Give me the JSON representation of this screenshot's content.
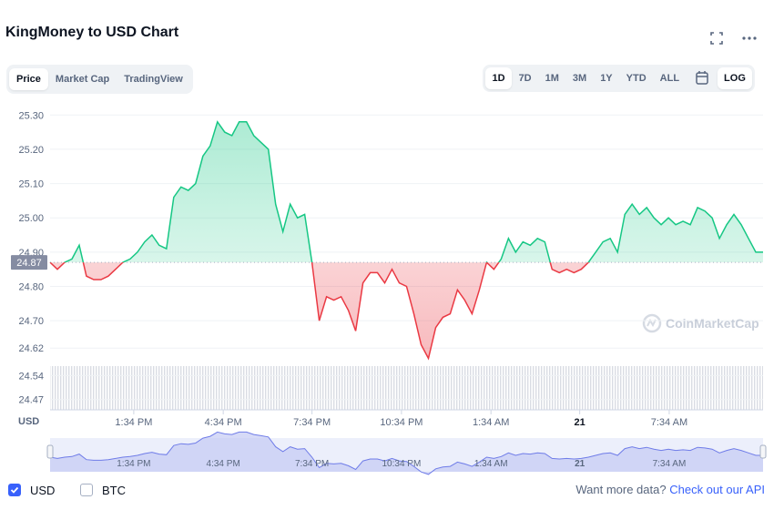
{
  "chart_data": {
    "type": "line",
    "title": "KingMoney to USD Chart",
    "tabs": [
      "Price",
      "Market Cap",
      "TradingView"
    ],
    "ranges": [
      "1D",
      "7D",
      "1M",
      "3M",
      "1Y",
      "YTD",
      "ALL"
    ],
    "log_button": "LOG",
    "log_scale": false,
    "y_label": "USD",
    "watermark": "CoinMarketCap",
    "compare": "BTC",
    "footer_text": "Want more data?",
    "footer_link": "Check out our API",
    "current_price": 24.87,
    "up_color": "#16c784",
    "down_color": "#ea3943",
    "grid": true,
    "series": [
      {
        "name": "USD",
        "color": "#3861fb",
        "values": [
          24.87,
          24.85,
          24.87,
          24.88,
          24.92,
          24.83,
          24.82,
          24.82,
          24.83,
          24.85,
          24.87,
          24.88,
          24.9,
          24.93,
          24.95,
          24.92,
          24.91,
          25.06,
          25.09,
          25.08,
          25.1,
          25.18,
          25.21,
          25.28,
          25.25,
          25.24,
          25.28,
          25.28,
          25.24,
          25.22,
          25.2,
          25.04,
          24.96,
          25.04,
          25.0,
          25.01,
          24.87,
          24.7,
          24.77,
          24.76,
          24.77,
          24.73,
          24.67,
          24.81,
          24.84,
          24.84,
          24.81,
          24.85,
          24.81,
          24.8,
          24.72,
          24.63,
          24.59,
          24.68,
          24.71,
          24.72,
          24.79,
          24.76,
          24.72,
          24.79,
          24.87,
          24.85,
          24.88,
          24.94,
          24.9,
          24.93,
          24.92,
          24.94,
          24.93,
          24.85,
          24.84,
          24.85,
          24.84,
          24.85,
          24.87,
          24.9,
          24.93,
          24.94,
          24.9,
          25.01,
          25.04,
          25.01,
          25.03,
          25.0,
          24.98,
          25.0,
          24.98,
          24.99,
          24.98,
          25.03,
          25.02,
          25.0,
          24.94,
          24.98,
          25.01,
          24.98,
          24.94,
          24.9,
          24.9
        ]
      }
    ],
    "xlim": [
      0,
      98
    ],
    "xticks": [
      {
        "value": 11.5,
        "label": "1:34 PM"
      },
      {
        "value": 23.8,
        "label": "4:34 PM"
      },
      {
        "value": 36.0,
        "label": "7:34 PM"
      },
      {
        "value": 48.3,
        "label": "10:34 PM"
      },
      {
        "value": 60.6,
        "label": "1:34 AM"
      },
      {
        "value": 72.8,
        "label": "21"
      },
      {
        "value": 85.1,
        "label": "7:34 AM"
      }
    ],
    "ylim": [
      24.44,
      25.33
    ],
    "yticks": [
      {
        "value": 25.3,
        "label": "25.30"
      },
      {
        "value": 25.2,
        "label": "25.20"
      },
      {
        "value": 25.1,
        "label": "25.10"
      },
      {
        "value": 25.0,
        "label": "25.00"
      },
      {
        "value": 24.9,
        "label": "24.90"
      },
      {
        "value": 24.8,
        "label": "24.80"
      },
      {
        "value": 24.7,
        "label": "24.70"
      },
      24.62,
      24.54,
      24.47
    ]
  }
}
